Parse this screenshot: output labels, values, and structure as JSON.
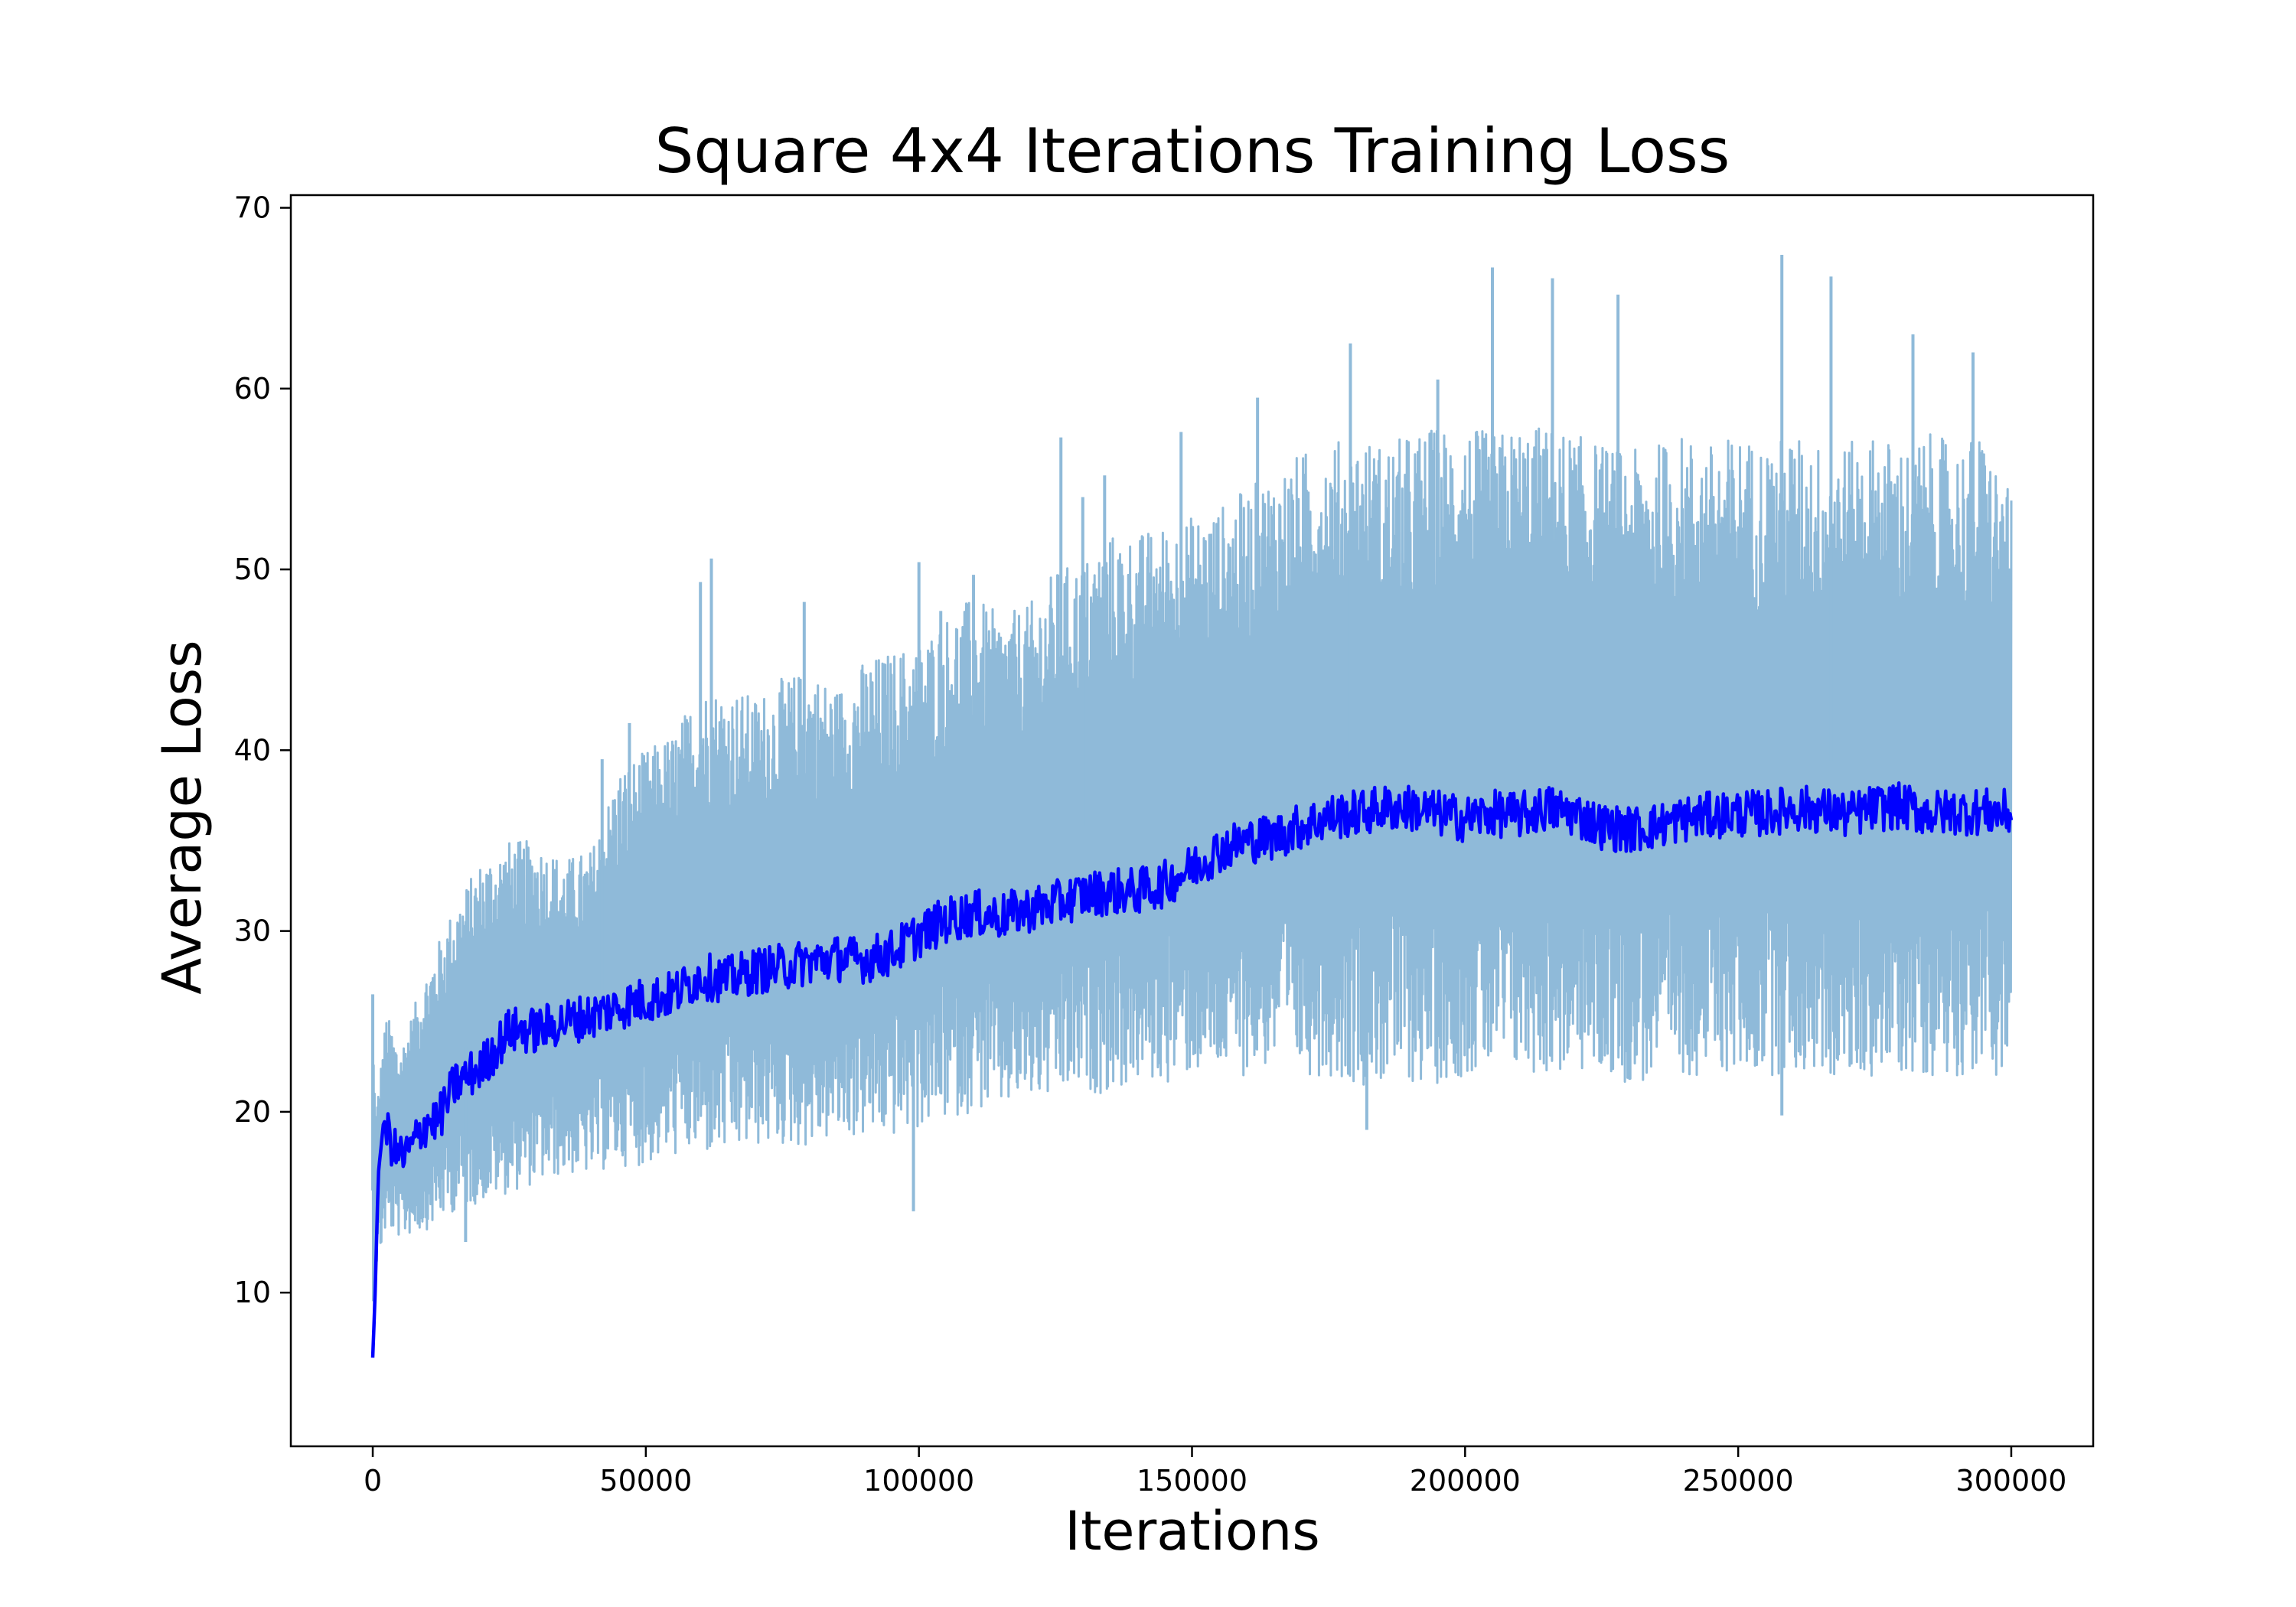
{
  "chart_data": {
    "type": "line",
    "title": "Square 4x4 Iterations Training Loss",
    "xlabel": "Iterations",
    "ylabel": "Average Loss",
    "xlim": [
      -15000,
      315000
    ],
    "ylim": [
      1.5,
      70.7
    ],
    "xticks": [
      0,
      50000,
      100000,
      150000,
      200000,
      250000,
      300000
    ],
    "yticks": [
      10,
      20,
      30,
      40,
      50,
      60,
      70
    ],
    "grid": false,
    "legend": false,
    "colors": {
      "raw": "#8fbad9",
      "smoothed": "#0000ff",
      "axes": "#000000"
    },
    "series": [
      {
        "style": "raw loss, light blue, noisy band",
        "x": [
          0,
          500,
          2500,
          5000,
          10000,
          15000,
          20000,
          25000,
          30000,
          35000,
          40000,
          45000,
          50000,
          55000,
          60000,
          65000,
          70000,
          75000,
          80000,
          85000,
          90000,
          95000,
          100000,
          105000,
          110000,
          115000,
          120000,
          125000,
          130000,
          135000,
          140000,
          145000,
          150000,
          155000,
          160000,
          165000,
          170000,
          175000,
          180000,
          185000,
          190000,
          195000,
          200000,
          205000,
          210000,
          215000,
          220000,
          225000,
          230000,
          235000,
          240000,
          245000,
          250000,
          255000,
          260000,
          265000,
          270000,
          275000,
          280000,
          285000,
          290000,
          295000,
          300000
        ],
        "upper": [
          26.5,
          20.0,
          25.5,
          23.5,
          28.0,
          31.5,
          34.0,
          35.0,
          35.0,
          34.0,
          34.5,
          39.0,
          40.0,
          41.0,
          43.5,
          43.5,
          43.0,
          44.0,
          44.5,
          43.5,
          45.0,
          45.5,
          46.0,
          47.5,
          48.5,
          47.5,
          48.0,
          50.0,
          50.5,
          52.0,
          52.0,
          52.5,
          53.0,
          53.5,
          54.5,
          55.5,
          56.5,
          57.0,
          57.5,
          57.0,
          57.5,
          58.0,
          58.0,
          57.5,
          58.0,
          58.0,
          57.5,
          57.0,
          56.5,
          57.0,
          57.5,
          57.0,
          57.5,
          57.0,
          57.5,
          57.0,
          57.0,
          57.5,
          57.0,
          57.5,
          57.0,
          57.5,
          54.0
        ],
        "lower": [
          4.8,
          11.0,
          13.5,
          13.0,
          13.5,
          14.5,
          15.0,
          15.5,
          16.0,
          16.5,
          16.5,
          17.0,
          17.0,
          17.5,
          17.5,
          17.5,
          18.0,
          18.0,
          18.0,
          18.5,
          18.5,
          18.5,
          19.0,
          19.5,
          20.0,
          20.0,
          20.5,
          20.5,
          21.0,
          21.0,
          21.5,
          21.5,
          22.0,
          22.0,
          22.0,
          22.5,
          22.0,
          22.0,
          21.5,
          21.5,
          21.5,
          21.5,
          22.0,
          22.0,
          22.0,
          22.0,
          22.0,
          22.0,
          21.5,
          21.5,
          22.0,
          22.0,
          22.0,
          22.0,
          22.0,
          22.0,
          21.5,
          22.0,
          22.0,
          22.0,
          22.0,
          22.0,
          22.0
        ],
        "spikes": [
          [
            0,
            26.5
          ],
          [
            42000,
            39.5
          ],
          [
            47000,
            41.5
          ],
          [
            60000,
            49.3
          ],
          [
            62000,
            50.6
          ],
          [
            79000,
            48.2
          ],
          [
            100000,
            50.4
          ],
          [
            104000,
            47.7
          ],
          [
            110000,
            49.7
          ],
          [
            126000,
            57.3
          ],
          [
            130000,
            54.0
          ],
          [
            134000,
            55.2
          ],
          [
            148000,
            57.6
          ],
          [
            162000,
            59.5
          ],
          [
            179000,
            62.5
          ],
          [
            195000,
            60.5
          ],
          [
            205000,
            66.7
          ],
          [
            216000,
            66.1
          ],
          [
            228000,
            65.2
          ],
          [
            258000,
            67.4
          ],
          [
            267000,
            66.2
          ],
          [
            282000,
            63.0
          ],
          [
            293000,
            62.0
          ],
          [
            99000,
            14.5
          ],
          [
            182000,
            19.0
          ],
          [
            258000,
            19.8
          ],
          [
            17000,
            12.8
          ]
        ]
      },
      {
        "style": "smoothed loss, blue",
        "x": [
          0,
          500,
          1000,
          2000,
          4000,
          6000,
          10000,
          12000,
          15000,
          20000,
          25000,
          30000,
          35000,
          40000,
          45000,
          50000,
          55000,
          60000,
          65000,
          70000,
          75000,
          80000,
          85000,
          90000,
          95000,
          100000,
          105000,
          110000,
          115000,
          120000,
          125000,
          130000,
          135000,
          140000,
          145000,
          150000,
          155000,
          160000,
          165000,
          170000,
          175000,
          180000,
          185000,
          190000,
          195000,
          200000,
          205000,
          210000,
          215000,
          220000,
          225000,
          230000,
          235000,
          240000,
          245000,
          250000,
          255000,
          260000,
          265000,
          270000,
          275000,
          280000,
          285000,
          290000,
          295000,
          300000
        ],
        "y": [
          6.4,
          10.5,
          16.5,
          19.5,
          17.8,
          17.5,
          19.5,
          19.5,
          21.5,
          22.5,
          24.5,
          24.5,
          25.0,
          25.3,
          25.8,
          26.2,
          26.5,
          27.5,
          27.3,
          27.8,
          28.0,
          28.3,
          28.5,
          28.4,
          28.8,
          29.8,
          30.6,
          31.0,
          30.8,
          31.2,
          31.5,
          32.0,
          32.2,
          32.2,
          32.6,
          33.5,
          34.5,
          35.0,
          35.2,
          35.8,
          36.3,
          36.5,
          36.8,
          36.8,
          36.5,
          36.2,
          36.5,
          36.4,
          36.8,
          36.5,
          35.8,
          35.6,
          35.8,
          36.2,
          36.4,
          36.5,
          36.5,
          36.8,
          36.7,
          36.4,
          36.8,
          36.9,
          36.5,
          36.6,
          36.6,
          36.5
        ]
      }
    ]
  }
}
